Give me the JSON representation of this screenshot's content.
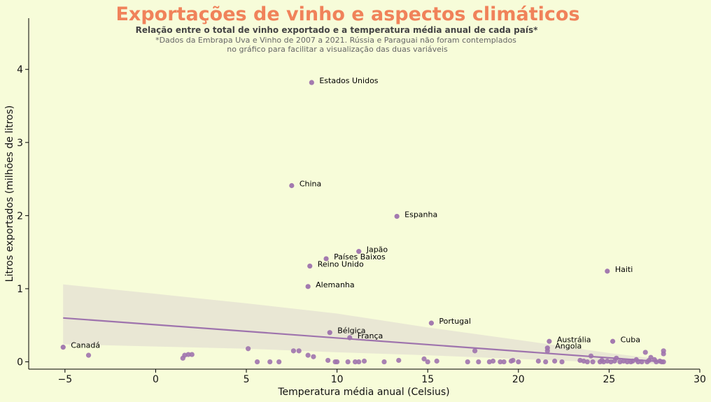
{
  "chart_data": {
    "type": "scatter",
    "title": "Exportações de vinho e aspectos climáticos",
    "subtitle": "Relação entre o total de vinho exportado e a temperatura média anual de cada país*",
    "note_line1": "*Dados da Embrapa Uva e Vinho de 2007 a 2021. Rússia e Paraguai não foram contemplados",
    "note_line2": "no gráfico para facilitar a visualização das duas variáveis",
    "xlabel": "Temperatura média anual (Celsius)",
    "ylabel": "Litros exportados (milhões de litros)",
    "xlim": [
      -7,
      30
    ],
    "ylim": [
      -0.1,
      4.7
    ],
    "xticks": [
      -5,
      0,
      5,
      10,
      15,
      20,
      25,
      30
    ],
    "yticks": [
      0,
      1,
      2,
      3,
      4
    ],
    "xtick_labels": [
      "−5",
      "0",
      "5",
      "10",
      "15",
      "20",
      "25",
      "30"
    ],
    "ytick_labels": [
      "0",
      "1",
      "2",
      "3",
      "4"
    ],
    "grid": false,
    "colors": {
      "background": "#f7fcd9",
      "title": "#f0825a",
      "points": "#9e73ad",
      "regression_line": "#9e73ad",
      "confidence_band": "#e6e3d2"
    },
    "regression": {
      "x": [
        -5.1,
        28.0
      ],
      "y": [
        0.6,
        0.0
      ]
    },
    "confidence_band": {
      "x": [
        -5.1,
        0,
        5,
        10,
        15,
        20,
        25,
        28.0
      ],
      "upper": [
        1.06,
        0.93,
        0.8,
        0.66,
        0.47,
        0.3,
        0.12,
        0.03
      ],
      "lower": [
        0.24,
        0.21,
        0.18,
        0.13,
        0.09,
        0.04,
        -0.01,
        -0.03
      ]
    },
    "labeled_points": [
      {
        "label": "Estados Unidos",
        "x": 8.6,
        "y": 3.82
      },
      {
        "label": "China",
        "x": 7.5,
        "y": 2.41
      },
      {
        "label": "Espanha",
        "x": 13.3,
        "y": 1.99
      },
      {
        "label": "Japão",
        "x": 11.2,
        "y": 1.51
      },
      {
        "label": "Países Baixos",
        "x": 9.4,
        "y": 1.41
      },
      {
        "label": "Reino Unido",
        "x": 8.5,
        "y": 1.31
      },
      {
        "label": "Alemanha",
        "x": 8.4,
        "y": 1.03
      },
      {
        "label": "Haiti",
        "x": 24.9,
        "y": 1.24
      },
      {
        "label": "Portugal",
        "x": 15.2,
        "y": 0.53
      },
      {
        "label": "Bélgica",
        "x": 9.6,
        "y": 0.4
      },
      {
        "label": "França",
        "x": 10.7,
        "y": 0.33
      },
      {
        "label": "Austrália",
        "x": 21.7,
        "y": 0.28
      },
      {
        "label": "Cuba",
        "x": 25.2,
        "y": 0.28
      },
      {
        "label": "Angola",
        "x": 21.6,
        "y": 0.19
      },
      {
        "label": "Canadá",
        "x": -5.1,
        "y": 0.2
      }
    ],
    "other_points": [
      {
        "x": -3.7,
        "y": 0.09
      },
      {
        "x": 1.5,
        "y": 0.05
      },
      {
        "x": 1.6,
        "y": 0.09
      },
      {
        "x": 1.8,
        "y": 0.1
      },
      {
        "x": 2.0,
        "y": 0.1
      },
      {
        "x": 5.1,
        "y": 0.18
      },
      {
        "x": 5.6,
        "y": 0.0
      },
      {
        "x": 6.3,
        "y": 0.0
      },
      {
        "x": 6.8,
        "y": 0.0
      },
      {
        "x": 7.6,
        "y": 0.15
      },
      {
        "x": 7.9,
        "y": 0.15
      },
      {
        "x": 8.4,
        "y": 0.09
      },
      {
        "x": 8.7,
        "y": 0.07
      },
      {
        "x": 9.5,
        "y": 0.02
      },
      {
        "x": 9.9,
        "y": 0.0
      },
      {
        "x": 10.0,
        "y": 0.0
      },
      {
        "x": 10.6,
        "y": 0.0
      },
      {
        "x": 11.0,
        "y": 0.0
      },
      {
        "x": 11.2,
        "y": 0.0
      },
      {
        "x": 11.5,
        "y": 0.01
      },
      {
        "x": 12.6,
        "y": 0.0
      },
      {
        "x": 13.4,
        "y": 0.02
      },
      {
        "x": 14.8,
        "y": 0.04
      },
      {
        "x": 15.0,
        "y": 0.0
      },
      {
        "x": 15.5,
        "y": 0.01
      },
      {
        "x": 17.2,
        "y": 0.0
      },
      {
        "x": 17.6,
        "y": 0.15
      },
      {
        "x": 17.8,
        "y": 0.0
      },
      {
        "x": 18.4,
        "y": 0.0
      },
      {
        "x": 18.6,
        "y": 0.01
      },
      {
        "x": 19.0,
        "y": 0.0
      },
      {
        "x": 19.2,
        "y": 0.0
      },
      {
        "x": 19.6,
        "y": 0.01
      },
      {
        "x": 19.7,
        "y": 0.02
      },
      {
        "x": 20.0,
        "y": 0.0
      },
      {
        "x": 21.1,
        "y": 0.01
      },
      {
        "x": 21.5,
        "y": 0.0
      },
      {
        "x": 21.6,
        "y": 0.15
      },
      {
        "x": 22.0,
        "y": 0.01
      },
      {
        "x": 22.4,
        "y": 0.0
      },
      {
        "x": 23.4,
        "y": 0.02
      },
      {
        "x": 23.6,
        "y": 0.01
      },
      {
        "x": 23.8,
        "y": 0.0
      },
      {
        "x": 24.0,
        "y": 0.08
      },
      {
        "x": 24.1,
        "y": 0.0
      },
      {
        "x": 24.5,
        "y": 0.0
      },
      {
        "x": 24.6,
        "y": 0.02
      },
      {
        "x": 24.7,
        "y": 0.0
      },
      {
        "x": 24.9,
        "y": 0.01
      },
      {
        "x": 25.1,
        "y": 0.0
      },
      {
        "x": 25.3,
        "y": 0.01
      },
      {
        "x": 25.4,
        "y": 0.05
      },
      {
        "x": 25.6,
        "y": 0.0
      },
      {
        "x": 25.8,
        "y": 0.01
      },
      {
        "x": 26.0,
        "y": 0.0
      },
      {
        "x": 26.2,
        "y": 0.0
      },
      {
        "x": 26.3,
        "y": 0.01
      },
      {
        "x": 26.5,
        "y": 0.03
      },
      {
        "x": 26.6,
        "y": 0.0
      },
      {
        "x": 26.8,
        "y": 0.0
      },
      {
        "x": 27.0,
        "y": 0.13
      },
      {
        "x": 27.1,
        "y": 0.0
      },
      {
        "x": 27.2,
        "y": 0.02
      },
      {
        "x": 27.3,
        "y": 0.06
      },
      {
        "x": 27.5,
        "y": 0.03
      },
      {
        "x": 27.6,
        "y": 0.0
      },
      {
        "x": 27.8,
        "y": 0.01
      },
      {
        "x": 28.0,
        "y": 0.0
      },
      {
        "x": 28.0,
        "y": 0.11
      },
      {
        "x": 28.0,
        "y": 0.15
      },
      {
        "x": 27.9,
        "y": 0.0
      }
    ]
  }
}
